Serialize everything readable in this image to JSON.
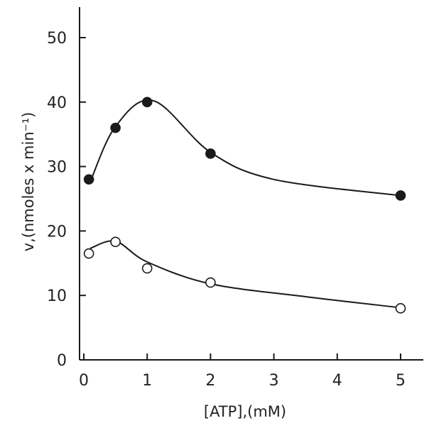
{
  "chart_data": {
    "type": "scatter",
    "title": "",
    "xlabel": "[ATP],(mM)",
    "ylabel": "v,(nmoles x min⁻¹)",
    "xlim": [
      0,
      5.4
    ],
    "ylim": [
      0,
      56
    ],
    "xticks": [
      0,
      1,
      2,
      3,
      4,
      5
    ],
    "yticks": [
      0,
      10,
      20,
      30,
      40,
      50
    ],
    "grid": false,
    "series": [
      {
        "marker": "filled-circle",
        "x": [
          0.08,
          0.5,
          1.0,
          2.0,
          5.0
        ],
        "y": [
          28.0,
          36.0,
          40.0,
          32.0,
          25.5
        ]
      },
      {
        "marker": "open-circle",
        "x": [
          0.08,
          0.5,
          1.0,
          2.0,
          5.0
        ],
        "y": [
          16.5,
          18.3,
          14.2,
          12.0,
          8.0
        ]
      }
    ],
    "colors": {
      "ink": "#1a1a1a",
      "background": "#ffffff"
    }
  }
}
